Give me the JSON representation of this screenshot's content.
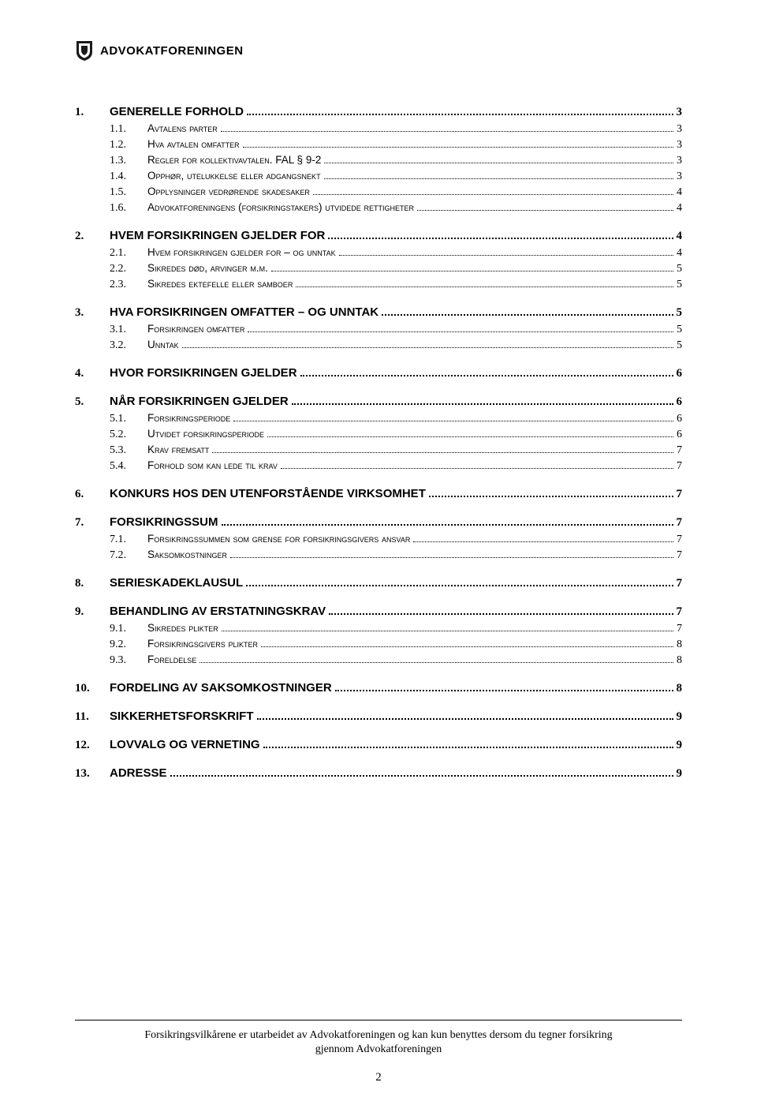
{
  "header": {
    "brand": "ADVOKATFORENINGEN"
  },
  "toc": [
    {
      "lvl": 1,
      "num": "1.",
      "title": "GENERELLE FORHOLD",
      "page": "3"
    },
    {
      "lvl": 2,
      "num": "1.1.",
      "title": "Avtalens parter",
      "page": "3"
    },
    {
      "lvl": 2,
      "num": "1.2.",
      "title": "Hva avtalen omfatter",
      "page": "3"
    },
    {
      "lvl": 2,
      "num": "1.3.",
      "title": "Regler for kollektivavtalen. FAL § 9-2",
      "page": "3"
    },
    {
      "lvl": 2,
      "num": "1.4.",
      "title": "Opphør, utelukkelse eller adgangsnekt",
      "page": "3"
    },
    {
      "lvl": 2,
      "num": "1.5.",
      "title": "Opplysninger vedrørende skadesaker",
      "page": "4"
    },
    {
      "lvl": 2,
      "num": "1.6.",
      "title": "Advokatforeningens (forsikringstakers) utvidede rettigheter",
      "page": "4"
    },
    {
      "lvl": 1,
      "num": "2.",
      "title": "HVEM FORSIKRINGEN GJELDER FOR",
      "page": "4"
    },
    {
      "lvl": 2,
      "num": "2.1.",
      "title": "Hvem forsikringen gjelder for – og unntak",
      "page": "4"
    },
    {
      "lvl": 2,
      "num": "2.2.",
      "title": "Sikredes død, arvinger m.m.",
      "page": "5"
    },
    {
      "lvl": 2,
      "num": "2.3.",
      "title": "Sikredes ektefelle eller samboer",
      "page": "5"
    },
    {
      "lvl": 1,
      "num": "3.",
      "title": "HVA FORSIKRINGEN OMFATTER – OG UNNTAK",
      "page": "5"
    },
    {
      "lvl": 2,
      "num": "3.1.",
      "title": "Forsikringen omfatter",
      "page": "5"
    },
    {
      "lvl": 2,
      "num": "3.2.",
      "title": "Unntak",
      "page": "5"
    },
    {
      "lvl": 1,
      "num": "4.",
      "title": "HVOR FORSIKRINGEN GJELDER",
      "page": "6"
    },
    {
      "lvl": 1,
      "num": "5.",
      "title": "NÅR FORSIKRINGEN GJELDER",
      "page": "6"
    },
    {
      "lvl": 2,
      "num": "5.1.",
      "title": "Forsikringsperiode",
      "page": "6"
    },
    {
      "lvl": 2,
      "num": "5.2.",
      "title": "Utvidet forsikringsperiode",
      "page": "6"
    },
    {
      "lvl": 2,
      "num": "5.3.",
      "title": "Krav fremsatt",
      "page": "7"
    },
    {
      "lvl": 2,
      "num": "5.4.",
      "title": "Forhold som kan lede til krav",
      "page": "7"
    },
    {
      "lvl": 1,
      "num": "6.",
      "title": "KONKURS HOS DEN UTENFORSTÅENDE VIRKSOMHET",
      "page": "7"
    },
    {
      "lvl": 1,
      "num": "7.",
      "title": "FORSIKRINGSSUM",
      "page": "7"
    },
    {
      "lvl": 2,
      "num": "7.1.",
      "title": "Forsikringssummen som grense for forsikringsgivers ansvar",
      "page": "7"
    },
    {
      "lvl": 2,
      "num": "7.2.",
      "title": "Saksomkostninger",
      "page": "7"
    },
    {
      "lvl": 1,
      "num": "8.",
      "title": "SERIESKADEKLAUSUL",
      "page": "7"
    },
    {
      "lvl": 1,
      "num": "9.",
      "title": "BEHANDLING AV ERSTATNINGSKRAV",
      "page": "7"
    },
    {
      "lvl": 2,
      "num": "9.1.",
      "title": "Sikredes plikter",
      "page": "7"
    },
    {
      "lvl": 2,
      "num": "9.2.",
      "title": "Forsikringsgivers plikter",
      "page": "8"
    },
    {
      "lvl": 2,
      "num": "9.3.",
      "title": "Foreldelse",
      "page": "8"
    },
    {
      "lvl": 1,
      "num": "10.",
      "title": "FORDELING AV SAKSOMKOSTNINGER",
      "page": "8"
    },
    {
      "lvl": 1,
      "num": "11.",
      "title": "SIKKERHETSFORSKRIFT",
      "page": "9"
    },
    {
      "lvl": 1,
      "num": "12.",
      "title": "LOVVALG OG VERNETING",
      "page": "9"
    },
    {
      "lvl": 1,
      "num": "13.",
      "title": "ADRESSE",
      "page": "9"
    }
  ],
  "footer": {
    "text_line1": "Forsikringsvilkårene er utarbeidet av Advokatforeningen og kan kun benyttes dersom du tegner forsikring",
    "text_line2": "gjennom Advokatforeningen",
    "page_number": "2"
  },
  "colors": {
    "text": "#000000",
    "background": "#ffffff",
    "shield_dark": "#1a1a1a",
    "shield_inner": "#ffffff"
  }
}
